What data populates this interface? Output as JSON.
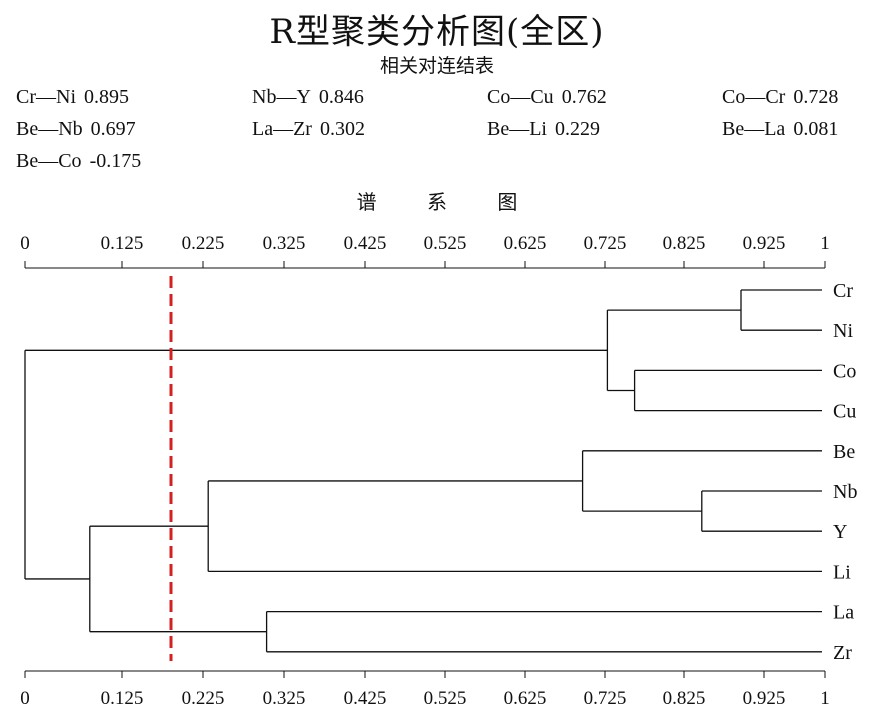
{
  "title": "R型聚类分析图(全区)",
  "subtitle": "相关对连结表",
  "correlations": [
    {
      "pair": "Cr—Ni",
      "value": "0.895"
    },
    {
      "pair": "Nb—Y",
      "value": "0.846"
    },
    {
      "pair": "Co—Cu",
      "value": "0.762"
    },
    {
      "pair": "Co—Cr",
      "value": "0.728"
    },
    {
      "pair": "Be—Nb",
      "value": "0.697"
    },
    {
      "pair": "La—Zr",
      "value": "0.302"
    },
    {
      "pair": "Be—Li",
      "value": "0.229"
    },
    {
      "pair": "Be—La",
      "value": "0.081"
    },
    {
      "pair": "Be—Co",
      "value": "-0.175"
    }
  ],
  "chart_data": {
    "type": "dendrogram",
    "title": "谱 系 图",
    "tick_labels": [
      "0",
      "0.125",
      "0.225",
      "0.325",
      "0.425",
      "0.525",
      "0.625",
      "0.725",
      "0.825",
      "0.925",
      "1"
    ],
    "xlim": [
      0,
      1
    ],
    "leaves": [
      "Cr",
      "Ni",
      "Co",
      "Cu",
      "Be",
      "Nb",
      "Y",
      "Li",
      "La",
      "Zr"
    ],
    "merges": [
      {
        "a": "Cr",
        "b": "Ni",
        "level": 0.895
      },
      {
        "a": "Nb",
        "b": "Y",
        "level": 0.846
      },
      {
        "a": "Co",
        "b": "Cu",
        "level": 0.762
      },
      {
        "a": "Cr-Ni",
        "b": "Co-Cu",
        "level": 0.728
      },
      {
        "a": "Be",
        "b": "Nb-Y",
        "level": 0.697
      },
      {
        "a": "La",
        "b": "Zr",
        "level": 0.302
      },
      {
        "a": "Be-Nb-Y",
        "b": "Li",
        "level": 0.229
      },
      {
        "a": "Be-Nb-Y-Li",
        "b": "La-Zr",
        "level": 0.081
      },
      {
        "a": "Cr-Ni-Co-Cu",
        "b": "Be-Nb-Y-Li-La-Zr",
        "level": -0.175
      }
    ],
    "threshold": 0.2,
    "threshold_color": "#d42020",
    "line_color": "#111111"
  }
}
